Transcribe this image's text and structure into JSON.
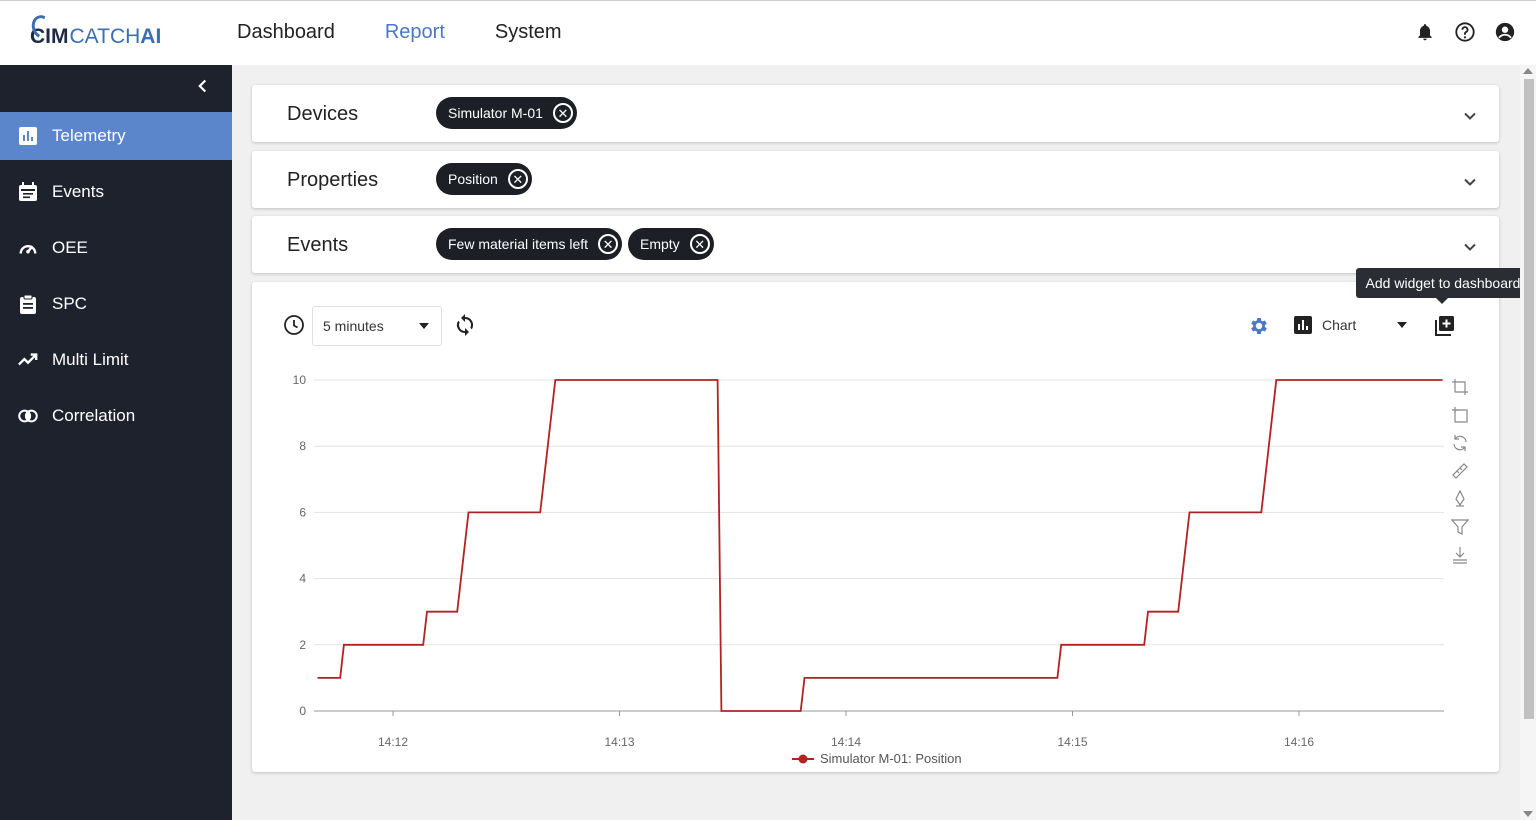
{
  "brand": {
    "cim": "CIM",
    "catch": "CATCH",
    "ai": "AI"
  },
  "nav": {
    "dashboard": "Dashboard",
    "report": "Report",
    "system": "System"
  },
  "sidebar": {
    "items": [
      {
        "label": "Telemetry"
      },
      {
        "label": "Events"
      },
      {
        "label": "OEE"
      },
      {
        "label": "SPC"
      },
      {
        "label": "Multi Limit"
      },
      {
        "label": "Correlation"
      }
    ]
  },
  "filters": {
    "devices": {
      "title": "Devices",
      "chips": [
        "Simulator M-01"
      ]
    },
    "properties": {
      "title": "Properties",
      "chips": [
        "Position"
      ]
    },
    "events": {
      "title": "Events",
      "chips": [
        "Few material items left",
        "Empty"
      ]
    }
  },
  "toolbar": {
    "time_range": "5 minutes",
    "view_type": "Chart",
    "tooltip": "Add widget to dashboard"
  },
  "colors": {
    "accent": "#4a78c6",
    "sidebar_bg": "#1e222c",
    "series": "#b22222"
  },
  "chart_data": {
    "type": "line",
    "step": true,
    "ylim": [
      0,
      10
    ],
    "yticks": [
      0,
      2,
      4,
      6,
      8,
      10
    ],
    "xticks": [
      "14:12",
      "14:13",
      "14:14",
      "14:15",
      "14:16"
    ],
    "grid": true,
    "legend_position": "bottom",
    "series": [
      {
        "name": "Simulator M-01: Position",
        "points": [
          [
            "14:11:40",
            1
          ],
          [
            "14:11:46",
            1
          ],
          [
            "14:11:47",
            2
          ],
          [
            "14:12:08",
            2
          ],
          [
            "14:12:09",
            3
          ],
          [
            "14:12:17",
            3
          ],
          [
            "14:12:20",
            6
          ],
          [
            "14:12:39",
            6
          ],
          [
            "14:12:43",
            10
          ],
          [
            "14:13:26",
            10
          ],
          [
            "14:13:27",
            0
          ],
          [
            "14:13:48",
            0
          ],
          [
            "14:13:49",
            1
          ],
          [
            "14:14:56",
            1
          ],
          [
            "14:14:57",
            2
          ],
          [
            "14:15:19",
            2
          ],
          [
            "14:15:20",
            3
          ],
          [
            "14:15:28",
            3
          ],
          [
            "14:15:31",
            6
          ],
          [
            "14:15:50",
            6
          ],
          [
            "14:15:54",
            10
          ],
          [
            "14:16:38",
            10
          ]
        ]
      }
    ]
  }
}
